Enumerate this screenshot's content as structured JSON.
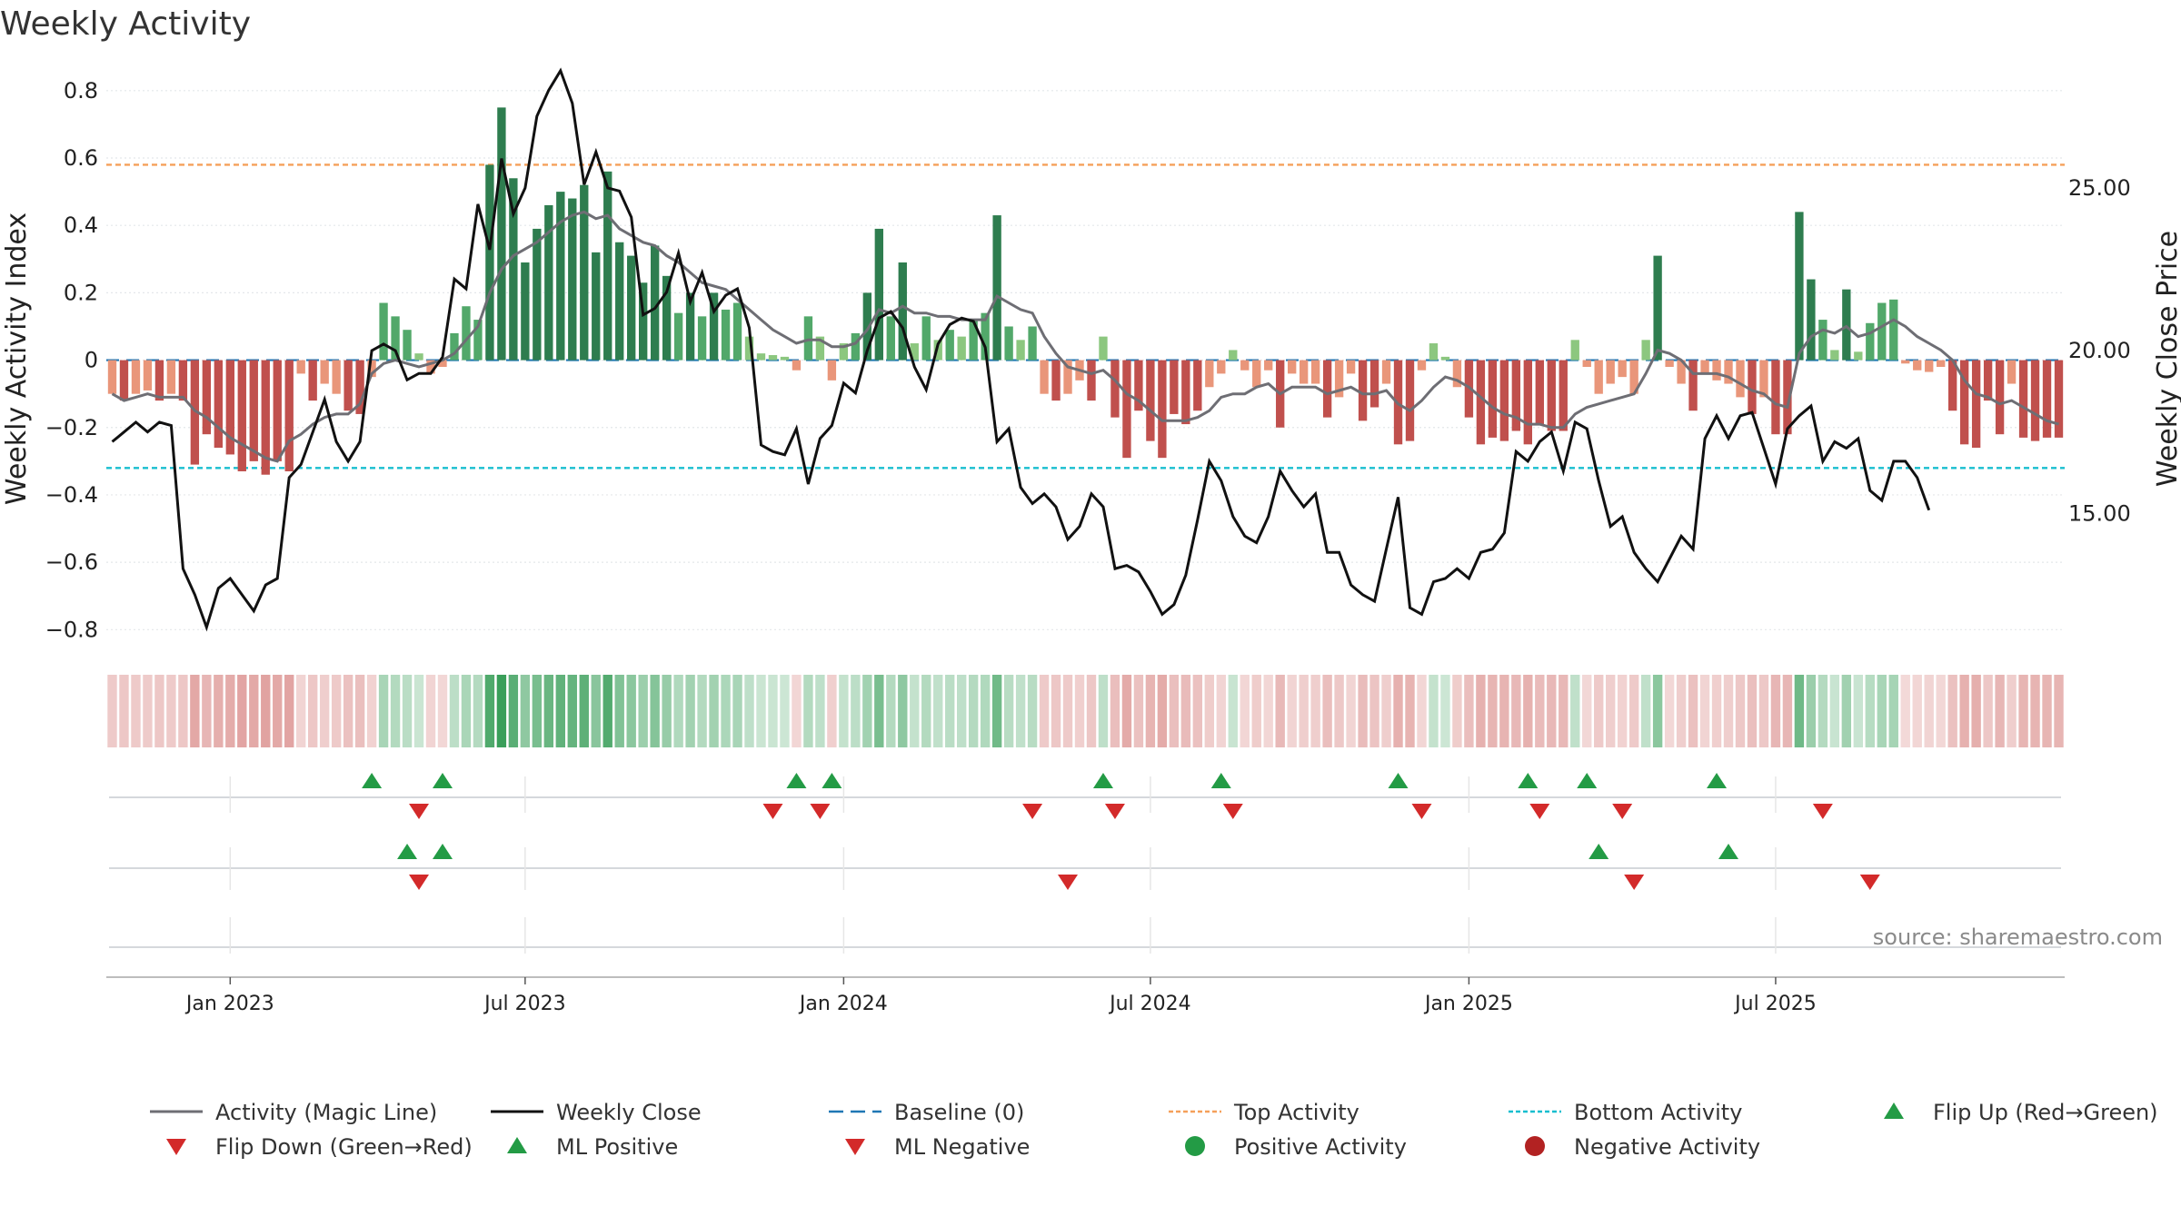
{
  "chart_data": {
    "type": "bar",
    "title": "Weekly Activity",
    "ylabel": "Weekly Activity Index",
    "y2label": "Weekly Close Price",
    "ylim": [
      -0.88,
      0.84
    ],
    "y2lim": [
      10.6,
      28.4
    ],
    "yticks": [
      "0.8",
      "0.6",
      "0.4",
      "0.2",
      "0",
      "−0.2",
      "−0.4",
      "−0.6",
      "−0.8"
    ],
    "y2ticks": [
      "25.00",
      "20.00",
      "15.00"
    ],
    "xticks": [
      "Jan 2023",
      "Jul 2023",
      "Jan 2024",
      "Jul 2024",
      "Jan 2025",
      "Jul 2025"
    ],
    "top_activity": 0.58,
    "bottom_activity": -0.32,
    "baseline": 0,
    "activity": [
      -0.1,
      -0.12,
      -0.1,
      -0.09,
      -0.12,
      -0.1,
      -0.12,
      -0.31,
      -0.22,
      -0.26,
      -0.28,
      -0.33,
      -0.3,
      -0.34,
      -0.3,
      -0.33,
      -0.04,
      -0.12,
      -0.07,
      -0.1,
      -0.15,
      -0.16,
      -0.05,
      0.17,
      0.13,
      0.09,
      0.02,
      -0.04,
      -0.02,
      0.08,
      0.16,
      0.12,
      0.58,
      0.75,
      0.54,
      0.29,
      0.39,
      0.46,
      0.5,
      0.48,
      0.52,
      0.32,
      0.56,
      0.35,
      0.31,
      0.23,
      0.34,
      0.25,
      0.14,
      0.2,
      0.13,
      0.2,
      0.15,
      0.17,
      0.07,
      0.02,
      0.015,
      0.01,
      -0.03,
      0.13,
      0.07,
      -0.06,
      0.05,
      0.08,
      0.2,
      0.39,
      0.13,
      0.29,
      0.05,
      0.13,
      0.06,
      0.09,
      0.07,
      0.12,
      0.14,
      0.43,
      0.1,
      0.06,
      0.1,
      -0.1,
      -0.12,
      -0.1,
      -0.06,
      -0.12,
      0.07,
      -0.17,
      -0.29,
      -0.15,
      -0.24,
      -0.29,
      -0.16,
      -0.19,
      -0.15,
      -0.08,
      -0.04,
      0.03,
      -0.03,
      -0.08,
      -0.03,
      -0.2,
      -0.04,
      -0.07,
      -0.07,
      -0.17,
      -0.11,
      -0.04,
      -0.18,
      -0.14,
      -0.07,
      -0.25,
      -0.24,
      -0.03,
      0.05,
      0.01,
      -0.08,
      -0.17,
      -0.25,
      -0.23,
      -0.24,
      -0.21,
      -0.25,
      -0.19,
      -0.21,
      -0.21,
      0.06,
      -0.02,
      -0.1,
      -0.07,
      -0.05,
      -0.1,
      0.06,
      0.31,
      -0.02,
      -0.07,
      -0.15,
      -0.04,
      -0.06,
      -0.07,
      -0.11,
      -0.16,
      -0.11,
      -0.22,
      -0.22,
      0.44,
      0.24,
      0.12,
      0.03,
      0.21,
      0.025,
      0.11,
      0.17,
      0.18,
      -0.01,
      -0.03,
      -0.035,
      -0.02,
      -0.15,
      -0.25,
      -0.26,
      -0.12,
      -0.22,
      -0.07,
      -0.23,
      -0.24,
      -0.23,
      -0.23
    ],
    "magic_line": [
      -0.1,
      -0.12,
      -0.11,
      -0.1,
      -0.11,
      -0.11,
      -0.11,
      -0.15,
      -0.17,
      -0.2,
      -0.23,
      -0.25,
      -0.27,
      -0.29,
      -0.3,
      -0.24,
      -0.22,
      -0.19,
      -0.17,
      -0.16,
      -0.16,
      -0.13,
      -0.04,
      -0.01,
      0,
      -0.01,
      -0.02,
      -0.01,
      0,
      0.02,
      0.06,
      0.1,
      0.2,
      0.27,
      0.31,
      0.33,
      0.35,
      0.38,
      0.41,
      0.43,
      0.44,
      0.42,
      0.43,
      0.39,
      0.37,
      0.35,
      0.34,
      0.31,
      0.29,
      0.26,
      0.23,
      0.22,
      0.21,
      0.18,
      0.15,
      0.12,
      0.09,
      0.07,
      0.05,
      0.06,
      0.06,
      0.04,
      0.04,
      0.05,
      0.09,
      0.15,
      0.14,
      0.16,
      0.14,
      0.14,
      0.13,
      0.13,
      0.12,
      0.12,
      0.12,
      0.19,
      0.17,
      0.15,
      0.14,
      0.07,
      0.02,
      -0.02,
      -0.03,
      -0.04,
      -0.03,
      -0.06,
      -0.1,
      -0.12,
      -0.15,
      -0.18,
      -0.18,
      -0.18,
      -0.17,
      -0.15,
      -0.11,
      -0.1,
      -0.1,
      -0.08,
      -0.07,
      -0.1,
      -0.08,
      -0.08,
      -0.08,
      -0.1,
      -0.09,
      -0.08,
      -0.1,
      -0.1,
      -0.09,
      -0.13,
      -0.15,
      -0.12,
      -0.08,
      -0.05,
      -0.06,
      -0.08,
      -0.11,
      -0.14,
      -0.16,
      -0.17,
      -0.19,
      -0.19,
      -0.2,
      -0.2,
      -0.16,
      -0.14,
      -0.13,
      -0.12,
      -0.11,
      -0.1,
      -0.04,
      0.03,
      0.02,
      0,
      -0.04,
      -0.04,
      -0.04,
      -0.05,
      -0.07,
      -0.09,
      -0.1,
      -0.13,
      -0.14,
      0.02,
      0.07,
      0.09,
      0.08,
      0.1,
      0.07,
      0.08,
      0.1,
      0.12,
      0.1,
      0.07,
      0.05,
      0.03,
      0,
      -0.06,
      -0.1,
      -0.11,
      -0.13,
      -0.12,
      -0.14,
      -0.16,
      -0.18,
      -0.19
    ],
    "weekly_close": [
      17.2,
      17.5,
      17.8,
      17.5,
      17.8,
      17.7,
      13.3,
      12.5,
      11.5,
      12.7,
      13.0,
      12.5,
      12.0,
      12.8,
      13.0,
      16.1,
      16.5,
      17.5,
      18.5,
      17.2,
      16.6,
      17.2,
      20.0,
      20.2,
      20.0,
      19.1,
      19.3,
      19.3,
      19.8,
      22.2,
      21.9,
      24.5,
      23.1,
      25.9,
      24.2,
      25.0,
      27.2,
      28.0,
      28.6,
      27.6,
      25.1,
      26.1,
      25.0,
      24.9,
      24.1,
      21.1,
      21.3,
      21.8,
      23.0,
      21.5,
      22.4,
      21.2,
      21.7,
      21.9,
      20.7,
      17.1,
      16.9,
      16.8,
      17.6,
      15.9,
      17.3,
      17.7,
      19.0,
      18.7,
      20.0,
      21.0,
      21.2,
      20.7,
      19.5,
      18.8,
      20.2,
      20.8,
      21.0,
      20.9,
      20.1,
      17.2,
      17.6,
      15.8,
      15.3,
      15.6,
      15.2,
      14.2,
      14.6,
      15.6,
      15.2,
      13.3,
      13.4,
      13.2,
      12.6,
      11.9,
      12.2,
      13.1,
      14.8,
      16.6,
      16.0,
      14.9,
      14.3,
      14.1,
      14.9,
      16.3,
      15.7,
      15.2,
      15.6,
      13.8,
      13.8,
      12.8,
      12.5,
      12.3,
      13.9,
      15.5,
      12.1,
      11.9,
      12.9,
      13.0,
      13.3,
      13.0,
      13.8,
      13.9,
      14.4,
      16.9,
      16.6,
      17.2,
      17.5,
      16.3,
      17.8,
      17.6,
      16.0,
      14.6,
      14.9,
      13.8,
      13.3,
      12.9,
      13.6,
      14.3,
      13.9,
      17.3,
      18.0,
      17.3,
      18.0,
      18.1,
      17.0,
      15.9,
      17.6,
      18.0,
      18.3,
      16.6,
      17.2,
      17.0,
      17.3,
      15.7,
      15.4,
      16.6,
      16.6,
      16.1,
      15.1
    ],
    "flip_up": [
      22,
      28,
      58,
      61,
      84,
      94,
      109,
      120,
      125,
      136
    ],
    "flip_down": [
      26,
      56,
      60,
      78,
      85,
      95,
      111,
      121,
      128,
      145
    ],
    "ml_positive": [
      25,
      28,
      126,
      137
    ],
    "ml_negative": [
      26,
      81,
      129,
      149
    ],
    "legend": [
      {
        "label": "Activity (Magic Line)",
        "key": "magic"
      },
      {
        "label": "Weekly Close",
        "key": "close"
      },
      {
        "label": "Baseline (0)",
        "key": "baseline"
      },
      {
        "label": "Top Activity",
        "key": "top"
      },
      {
        "label": "Bottom Activity",
        "key": "bottom"
      },
      {
        "label": "Flip Up (Red→Green)",
        "key": "flipup"
      },
      {
        "label": "Flip Down (Green→Red)",
        "key": "flipdown"
      },
      {
        "label": "ML Positive",
        "key": "mlpos"
      },
      {
        "label": "ML Negative",
        "key": "mlneg"
      },
      {
        "label": "Positive Activity",
        "key": "posdot"
      },
      {
        "label": "Negative Activity",
        "key": "negdot"
      }
    ],
    "source": "source: sharemaestro.com"
  },
  "colors": {
    "green_dark": "#2e7d4f",
    "green_mid": "#52a86a",
    "green_light": "#8cc77f",
    "red_dark": "#c0504d",
    "red_light": "#e9967a",
    "magic": "#6e6e74",
    "close": "#111111",
    "baseline": "#1f77b4",
    "top": "#f5a05a",
    "bottom": "#17becf",
    "marker_green": "#239b45",
    "marker_red": "#d32a2a",
    "dot_red": "#b22222"
  }
}
